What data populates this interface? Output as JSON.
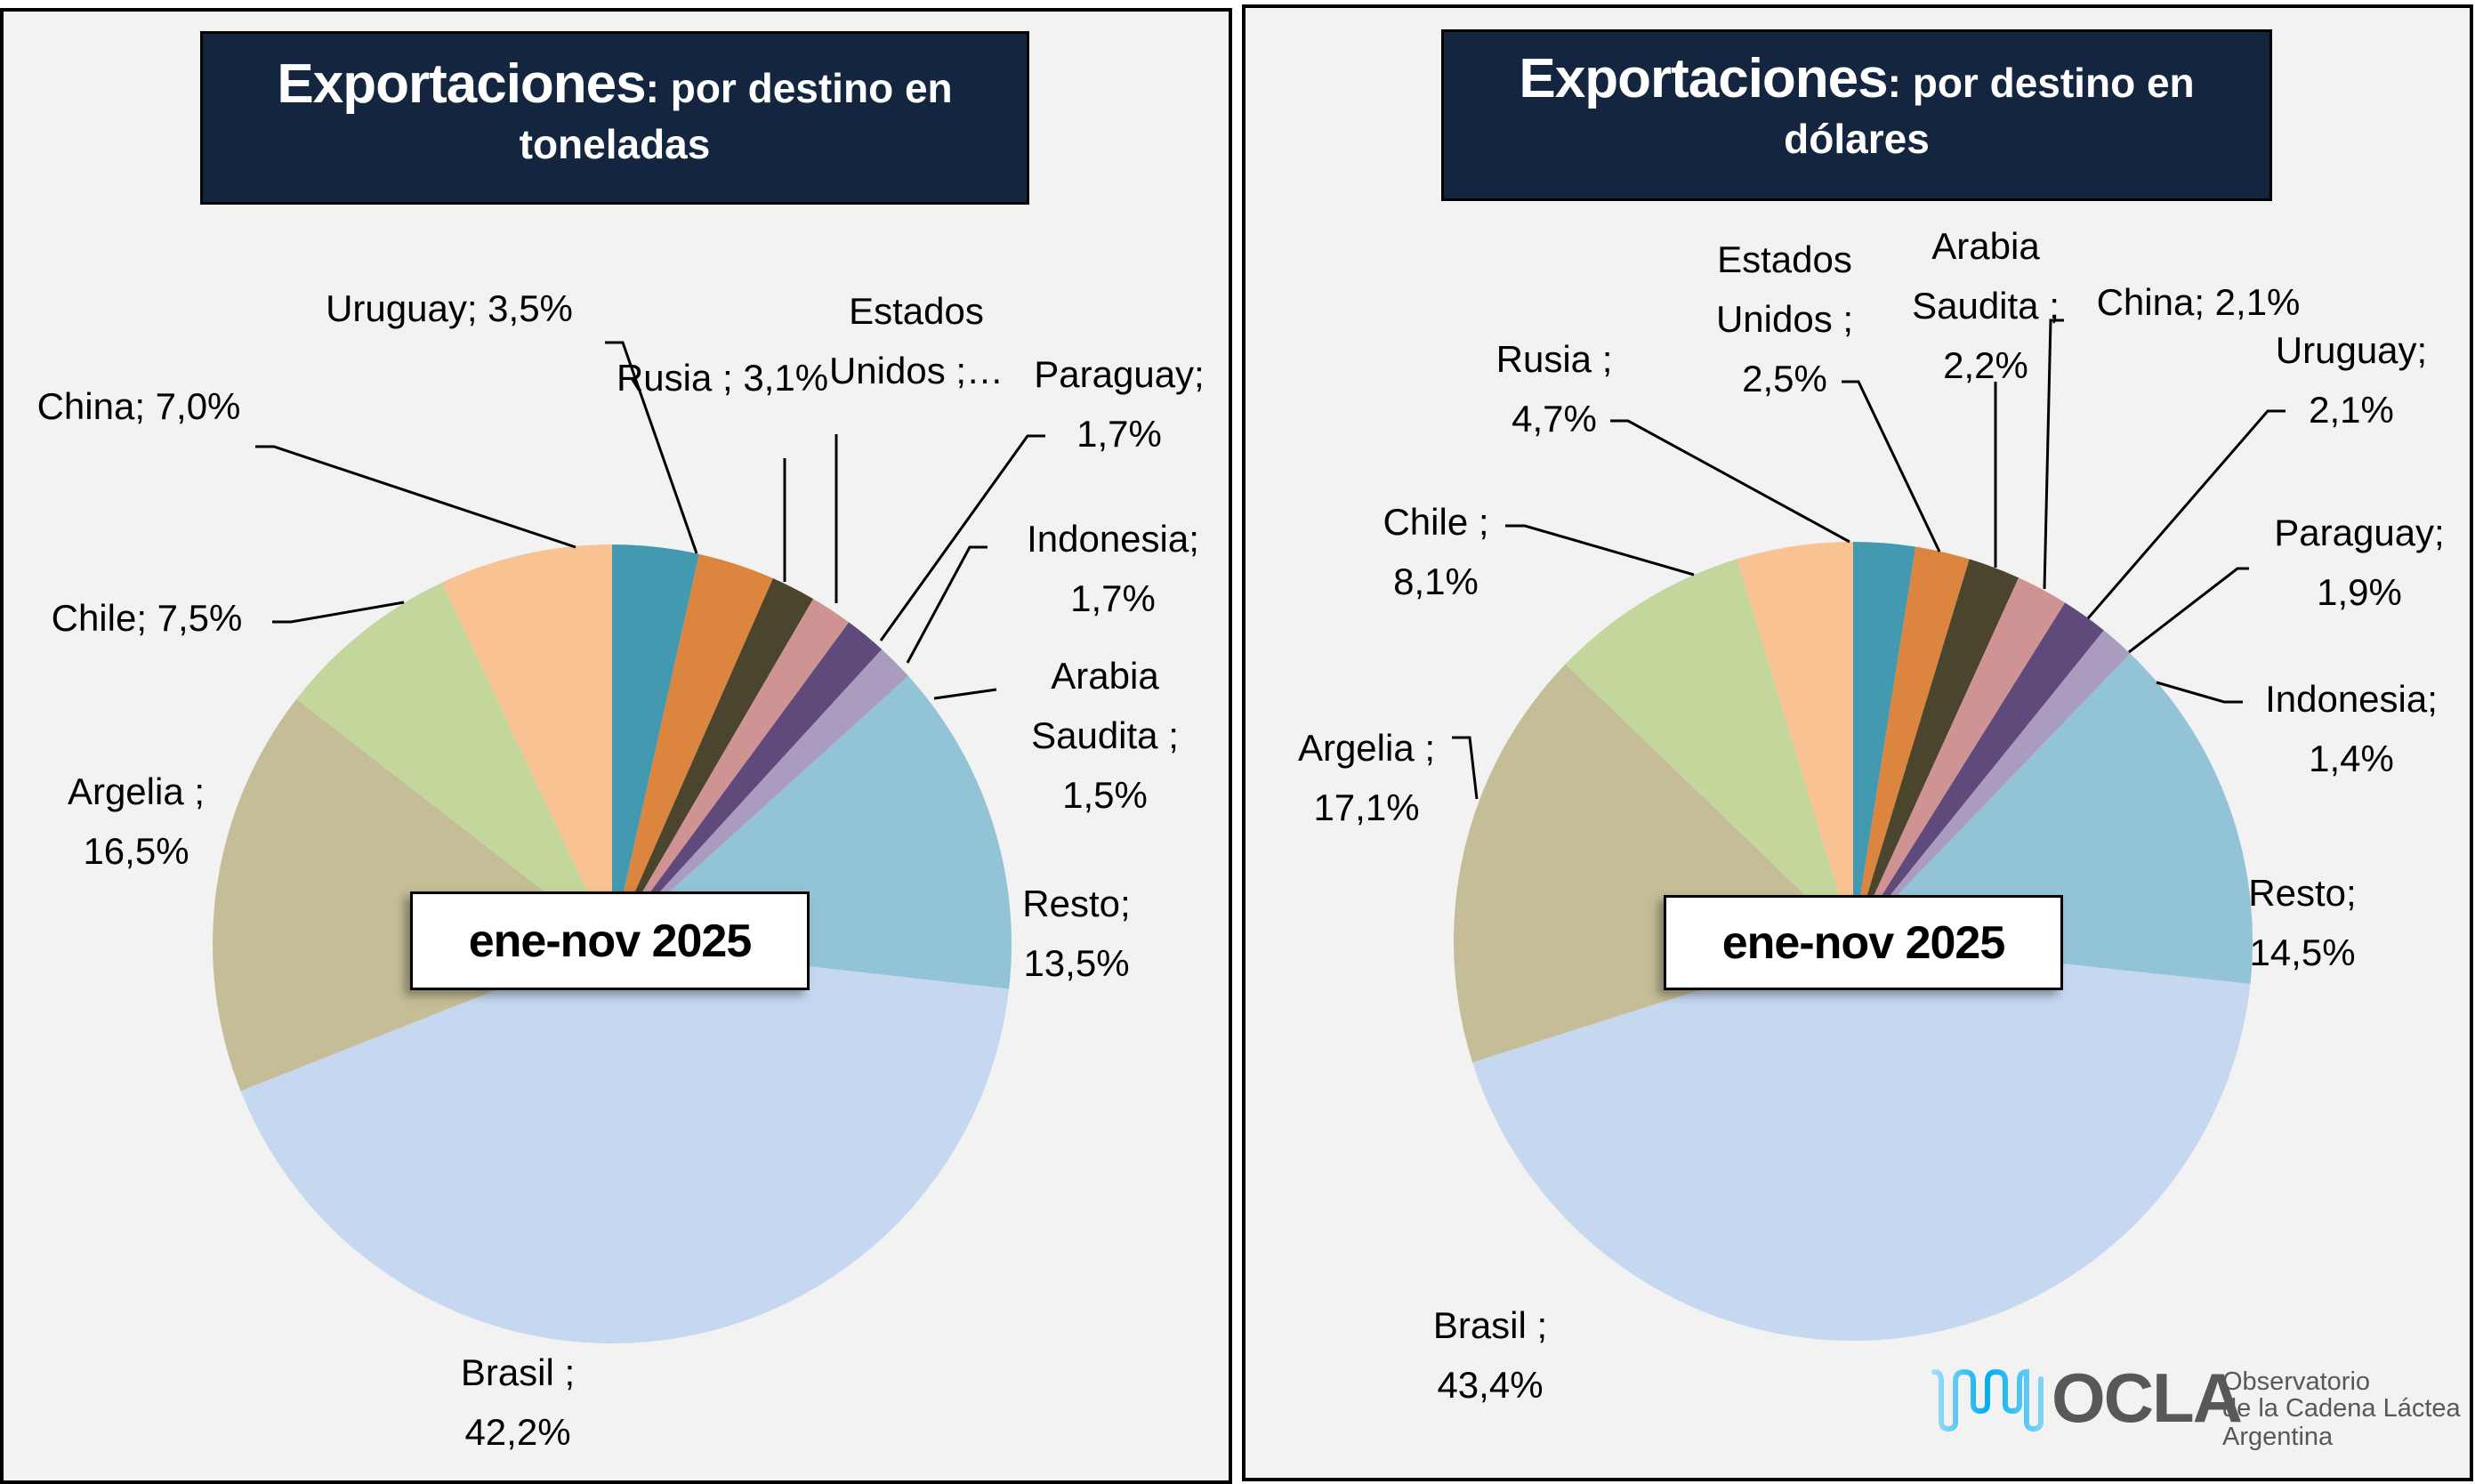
{
  "panels": [
    {
      "title_bold": "Exportaciones",
      "title_rest_line1": ": por destino en",
      "title_line2": "toneladas",
      "period": "ene-nov 2025"
    },
    {
      "title_bold": "Exportaciones",
      "title_rest_line1": ": por destino en",
      "title_line2": "dólares",
      "period": "ene-nov 2025"
    }
  ],
  "logo": {
    "name": "OCLA",
    "line1": "Observatorio",
    "line2": "de la Cadena Láctea",
    "line3": "Argentina",
    "wave_color": "#00AEEF",
    "text_color": "#58585A"
  },
  "chart_data": [
    {
      "type": "pie",
      "title": "Exportaciones: por destino en toneladas",
      "subtitle": "ene-nov 2025",
      "start": "12 o'clock, clockwise",
      "slices": [
        {
          "name": "Uruguay",
          "value": 3.5,
          "label_lines": [
            "Uruguay; 3,5%"
          ],
          "color": "#4399B0"
        },
        {
          "name": "Rusia",
          "value": 3.1,
          "label_lines": [
            "Rusia ; 3,1%"
          ],
          "color": "#DB853F"
        },
        {
          "name": "Estados Unidos",
          "value": 1.8,
          "label_lines": [
            "Estados",
            "Unidos ;…"
          ],
          "color": "#4A452C"
        },
        {
          "name": "Paraguay",
          "value": 1.7,
          "label_lines": [
            "Paraguay;",
            "1,7%"
          ],
          "color": "#D09394"
        },
        {
          "name": "Indonesia",
          "value": 1.7,
          "label_lines": [
            "Indonesia;",
            "1,7%"
          ],
          "color": "#604A7B"
        },
        {
          "name": "Arabia Saudita",
          "value": 1.5,
          "label_lines": [
            "Arabia",
            "Saudita ;",
            "1,5%"
          ],
          "color": "#AA9CBF"
        },
        {
          "name": "Resto",
          "value": 13.5,
          "label_lines": [
            "Resto;",
            "13,5%"
          ],
          "color": "#93C3D6"
        },
        {
          "name": "Brasil",
          "value": 42.2,
          "label_lines": [
            "Brasil ;",
            "42,2%"
          ],
          "color": "#C6D8F0"
        },
        {
          "name": "Argelia",
          "value": 16.5,
          "label_lines": [
            "Argelia ;",
            "16,5%"
          ],
          "color": "#C4BD97"
        },
        {
          "name": "Chile",
          "value": 7.5,
          "label_lines": [
            "Chile; 7,5%"
          ],
          "color": "#C3D69B"
        },
        {
          "name": "China",
          "value": 7.0,
          "label_lines": [
            "China; 7,0%"
          ],
          "color": "#F9C292"
        }
      ]
    },
    {
      "type": "pie",
      "title": "Exportaciones: por destino en dólares",
      "subtitle": "ene-nov 2025",
      "start": "12 o'clock, clockwise",
      "slices": [
        {
          "name": "Estados Unidos",
          "value": 2.5,
          "label_lines": [
            "Estados",
            "Unidos ;",
            "2,5%"
          ],
          "color": "#4399B0"
        },
        {
          "name": "Arabia Saudita",
          "value": 2.2,
          "label_lines": [
            "Arabia",
            "Saudita ;",
            "2,2%"
          ],
          "color": "#DB853F"
        },
        {
          "name": "China",
          "value": 2.1,
          "label_lines": [
            "China; 2,1%"
          ],
          "color": "#4A452C"
        },
        {
          "name": "Uruguay",
          "value": 2.1,
          "label_lines": [
            "Uruguay;",
            "2,1%"
          ],
          "color": "#D09394"
        },
        {
          "name": "Paraguay",
          "value": 1.9,
          "label_lines": [
            "Paraguay;",
            "1,9%"
          ],
          "color": "#604A7B"
        },
        {
          "name": "Indonesia",
          "value": 1.4,
          "label_lines": [
            "Indonesia;",
            "1,4%"
          ],
          "color": "#AA9CBF"
        },
        {
          "name": "Resto",
          "value": 14.5,
          "label_lines": [
            "Resto;",
            "14,5%"
          ],
          "color": "#93C3D6"
        },
        {
          "name": "Brasil",
          "value": 43.4,
          "label_lines": [
            "Brasil ;",
            "43,4%"
          ],
          "color": "#C6D8F0"
        },
        {
          "name": "Argelia",
          "value": 17.1,
          "label_lines": [
            "Argelia ;",
            "17,1%"
          ],
          "color": "#C4BD97"
        },
        {
          "name": "Chile",
          "value": 8.1,
          "label_lines": [
            "Chile ;",
            "8,1%"
          ],
          "color": "#C3D69B"
        },
        {
          "name": "Rusia",
          "value": 4.7,
          "label_lines": [
            "Rusia ;",
            "4,7%"
          ],
          "color": "#F9C292"
        }
      ]
    }
  ]
}
